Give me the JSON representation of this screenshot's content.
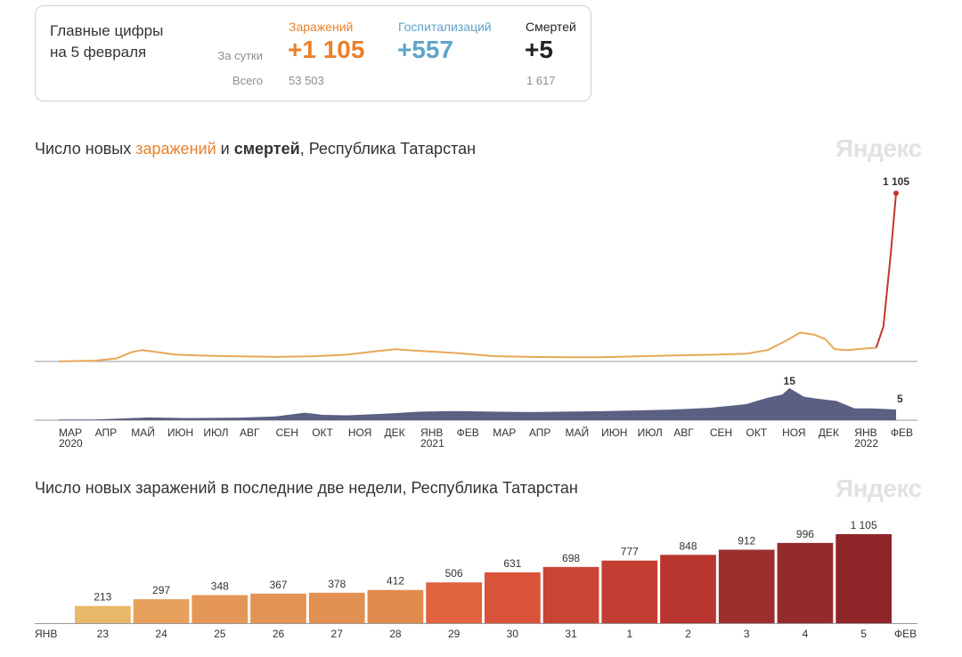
{
  "summary": {
    "title": "Главные цифры\nна 5 февраля",
    "row_daily": "За сутки",
    "row_total": "Всего",
    "infections": {
      "label": "Заражений",
      "daily": "+1 105",
      "total": "53 503"
    },
    "hospitalizations": {
      "label": "Госпитализаций",
      "daily": "+557",
      "total": ""
    },
    "deaths": {
      "label": "Смертей",
      "daily": "+5",
      "total": "1 617"
    }
  },
  "brand": "Яндекс",
  "colors": {
    "infections": "#e8a85a",
    "infections_peak": "#c0392b",
    "deaths": "#5b5f82",
    "accent_orange": "#e8802c",
    "weekend_red": "#d03020"
  },
  "chart_data": [
    {
      "type": "line",
      "title_parts": [
        "Число новых ",
        "заражений",
        " и ",
        "смертей",
        ", Республика Татарстан"
      ],
      "x_labels": [
        "МАР",
        "АПР",
        "МАЙ",
        "ИЮН",
        "ИЮЛ",
        "АВГ",
        "СЕН",
        "ОКТ",
        "НОЯ",
        "ДЕК",
        "ЯНВ",
        "ФЕВ",
        "МАР",
        "АПР",
        "МАЙ",
        "ИЮН",
        "ИЮЛ",
        "АВГ",
        "СЕН",
        "ОКТ",
        "НОЯ",
        "ДЕК",
        "ЯНВ",
        "ФЕВ"
      ],
      "year_labels": [
        {
          "label": "2020",
          "month_index": 0
        },
        {
          "label": "2021",
          "month_index": 10
        },
        {
          "label": "2022",
          "month_index": 22
        }
      ],
      "series": [
        {
          "name": "заражений",
          "last_label": "1 105",
          "points": [
            [
              0,
              0
            ],
            [
              1,
              5
            ],
            [
              1.6,
              20
            ],
            [
              2.0,
              60
            ],
            [
              2.3,
              75
            ],
            [
              2.7,
              62
            ],
            [
              3.2,
              45
            ],
            [
              4,
              38
            ],
            [
              5,
              34
            ],
            [
              6,
              30
            ],
            [
              7,
              34
            ],
            [
              8,
              45
            ],
            [
              8.7,
              65
            ],
            [
              9.3,
              80
            ],
            [
              9.8,
              72
            ],
            [
              10.5,
              62
            ],
            [
              11,
              55
            ],
            [
              11.5,
              45
            ],
            [
              12,
              35
            ],
            [
              13,
              30
            ],
            [
              14,
              28
            ],
            [
              15,
              28
            ],
            [
              16,
              34
            ],
            [
              17,
              40
            ],
            [
              18,
              44
            ],
            [
              19,
              50
            ],
            [
              19.6,
              75
            ],
            [
              20.1,
              135
            ],
            [
              20.5,
              190
            ],
            [
              20.9,
              175
            ],
            [
              21.2,
              145
            ],
            [
              21.45,
              80
            ],
            [
              21.8,
              75
            ],
            [
              22.3,
              85
            ],
            [
              22.6,
              90
            ],
            [
              22.8,
              230
            ],
            [
              23.0,
              700
            ],
            [
              23.15,
              1105
            ]
          ]
        },
        {
          "name": "смертей",
          "last_label": "5",
          "peak_label": "15",
          "points": [
            [
              0,
              0.3
            ],
            [
              1,
              0.3
            ],
            [
              1.7,
              0.8
            ],
            [
              2.5,
              1.3
            ],
            [
              3.5,
              1.0
            ],
            [
              5,
              1.2
            ],
            [
              6,
              1.8
            ],
            [
              6.8,
              3.5
            ],
            [
              7.3,
              2.5
            ],
            [
              8,
              2.3
            ],
            [
              9,
              3.0
            ],
            [
              10,
              4.0
            ],
            [
              11,
              4.3
            ],
            [
              12,
              4.0
            ],
            [
              13,
              3.8
            ],
            [
              14,
              4.0
            ],
            [
              15,
              4.2
            ],
            [
              16,
              4.6
            ],
            [
              17,
              5.0
            ],
            [
              18,
              5.8
            ],
            [
              19,
              7.5
            ],
            [
              19.6,
              10.5
            ],
            [
              20.0,
              12
            ],
            [
              20.2,
              15
            ],
            [
              20.6,
              11
            ],
            [
              21.0,
              10
            ],
            [
              21.5,
              9
            ],
            [
              22,
              5.5
            ],
            [
              22.5,
              5.5
            ],
            [
              23.15,
              5
            ]
          ]
        }
      ]
    },
    {
      "type": "bar",
      "title": "Число новых заражений в последние две недели, Республика Татарстан",
      "start_label": "ЯНВ",
      "end_label": "ФЕВ",
      "categories": [
        "23",
        "24",
        "25",
        "26",
        "27",
        "28",
        "29",
        "30",
        "31",
        "1",
        "2",
        "3",
        "4",
        "5"
      ],
      "values": [
        213,
        297,
        348,
        367,
        378,
        412,
        506,
        631,
        698,
        777,
        848,
        912,
        996,
        1105
      ],
      "value_labels": [
        "213",
        "297",
        "348",
        "367",
        "378",
        "412",
        "506",
        "631",
        "698",
        "777",
        "848",
        "912",
        "996",
        "1 105"
      ],
      "highlight_categories": [
        "23",
        "29",
        "30",
        "5"
      ],
      "bar_colors": [
        "#e8b86a",
        "#e6a05c",
        "#e49656",
        "#e39354",
        "#e29052",
        "#e08a4e",
        "#e0623e",
        "#d9533a",
        "#c94434",
        "#c23d31",
        "#b8362e",
        "#9e2e2e",
        "#952a2c",
        "#8e2629"
      ]
    }
  ]
}
